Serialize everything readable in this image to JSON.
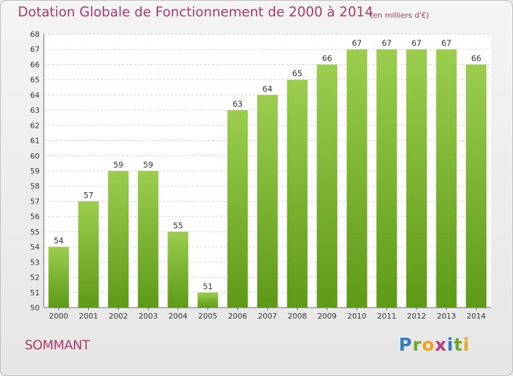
{
  "chart_data": {
    "type": "bar",
    "title": "Dotation Globale de Fonctionnement de 2000 à 2014",
    "subtitle": "(en milliers d'€)",
    "xlabel": "",
    "ylabel": "",
    "categories": [
      "2000",
      "2001",
      "2002",
      "2003",
      "2004",
      "2005",
      "2006",
      "2007",
      "2008",
      "2009",
      "2010",
      "2011",
      "2012",
      "2013",
      "2014"
    ],
    "values": [
      54,
      57,
      59,
      59,
      55,
      51,
      63,
      64,
      65,
      66,
      67,
      67,
      67,
      67,
      66
    ],
    "ylim": [
      50,
      68
    ],
    "yticks": [
      50,
      51,
      52,
      53,
      54,
      55,
      56,
      57,
      58,
      59,
      60,
      61,
      62,
      63,
      64,
      65,
      66,
      67,
      68
    ],
    "grid": true,
    "colors": {
      "bar_top": "#9ccd4e",
      "bar_bottom": "#5d9a17",
      "grid": "#cfcfcf"
    }
  },
  "footer": {
    "commune": "SOMMANT",
    "logo_text": "Proxiti"
  }
}
